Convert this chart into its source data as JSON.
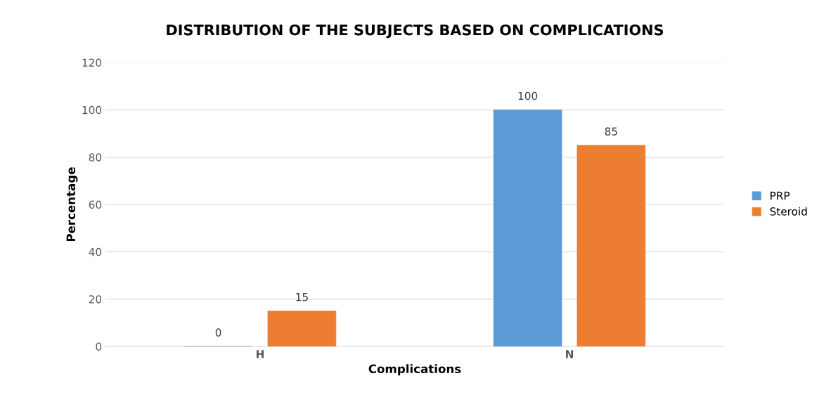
{
  "chart_data": {
    "type": "bar",
    "title": "DISTRIBUTION OF THE SUBJECTS BASED ON COMPLICATIONS",
    "xlabel": "Complications",
    "ylabel": "Percentage",
    "categories": [
      "H",
      "N"
    ],
    "series": [
      {
        "name": "PRP",
        "color": "#5b9bd5",
        "values": [
          0,
          100
        ]
      },
      {
        "name": "Steroid",
        "color": "#ed7d31",
        "values": [
          15,
          85
        ]
      }
    ],
    "ylim": [
      0,
      120
    ],
    "yticks": [
      0,
      20,
      40,
      60,
      80,
      100,
      120
    ],
    "grid": "y",
    "legend": "right",
    "data_labels": true
  }
}
